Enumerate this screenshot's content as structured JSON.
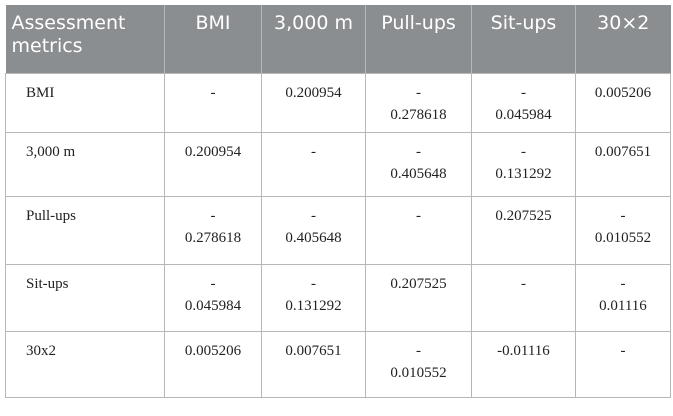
{
  "table": {
    "headers": [
      "Assessment metrics",
      "BMI",
      "3,000 m",
      "Pull-ups",
      "Sit-ups",
      "30×2"
    ],
    "rows": [
      {
        "label": "BMI",
        "values": [
          "-",
          "0.200954",
          "-\n0.278618",
          "-\n0.045984",
          "0.005206"
        ]
      },
      {
        "label": "3,000 m",
        "values": [
          "0.200954",
          "-",
          "-\n0.405648",
          "-\n0.131292",
          "0.007651"
        ]
      },
      {
        "label": "Pull-ups",
        "values": [
          "-\n0.278618",
          "-\n0.405648",
          "-",
          "0.207525",
          "-\n0.010552"
        ]
      },
      {
        "label": "Sit-ups",
        "values": [
          "-\n0.045984",
          "-\n0.131292",
          "0.207525",
          "-",
          "-\n0.01116"
        ]
      },
      {
        "label": "30x2",
        "values": [
          "0.005206",
          "0.007651",
          "-\n0.010552",
          "-0.01116",
          "-"
        ]
      }
    ]
  },
  "colors": {
    "header_bg": "#8b8e90",
    "header_text": "#ffffff",
    "border": "#b5b7b8"
  }
}
